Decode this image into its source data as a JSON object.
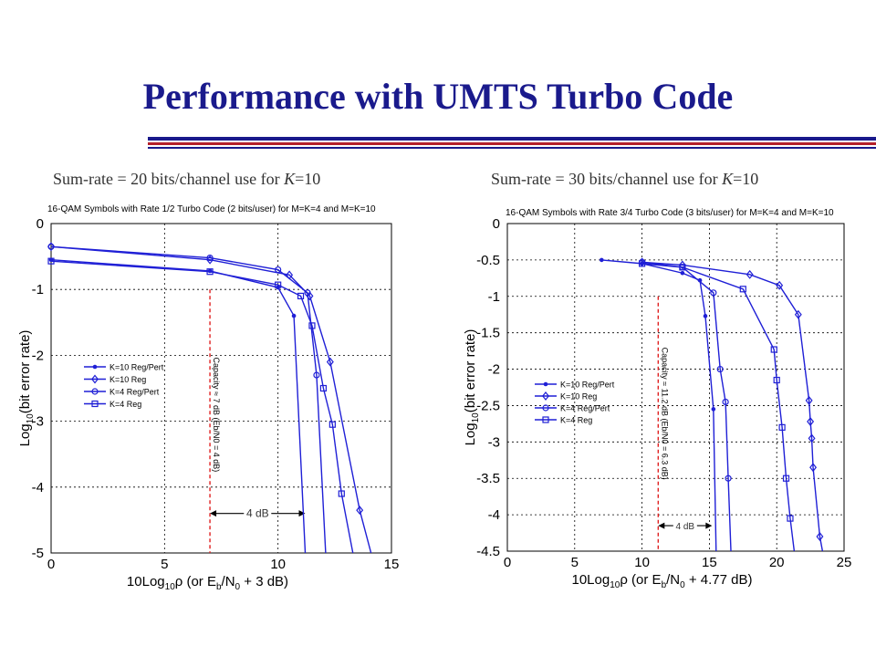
{
  "slide": {
    "title": "Performance with UMTS Turbo Code"
  },
  "subtitles": [
    {
      "text": "Sum-rate = 20 bits/channel use for ",
      "var": "K",
      "tail": "=10"
    },
    {
      "text": "Sum-rate = 30 bits/channel use for ",
      "var": "K",
      "tail": "=10"
    }
  ],
  "colors": {
    "title": "#1a1a8c",
    "series": "#1f1fd6",
    "capacity": "#e02020",
    "rule_red": "#b4202a"
  },
  "chart_data": [
    {
      "type": "line",
      "title": "16-QAM Symbols with Rate 1/2 Turbo Code (2 bits/user) for M=K=4 and M=K=10",
      "xlabel": "10Log10ρ   (or Eb/N0 + 3 dB)",
      "ylabel": "Log10(bit error rate)",
      "xlim": [
        0,
        15
      ],
      "ylim": [
        -5,
        0
      ],
      "xticks": [
        0,
        5,
        10,
        15
      ],
      "yticks": [
        0,
        -1,
        -2,
        -3,
        -4,
        -5
      ],
      "xtick_labels": [
        "0",
        "5",
        "10",
        "15"
      ],
      "ytick_labels": [
        "0",
        "-1",
        "-2",
        "-3",
        "-4",
        "-5"
      ],
      "grid": true,
      "legend": "left-middle",
      "series": [
        {
          "name": "K=10 Reg/Pert",
          "marker": "dot",
          "x": [
            0,
            7,
            10,
            10.7,
            11.2
          ],
          "y": [
            -0.55,
            -0.72,
            -0.97,
            -1.4,
            -5
          ]
        },
        {
          "name": "K=10 Reg",
          "marker": "diamond",
          "x": [
            0,
            7,
            10.5,
            11.4,
            12.3,
            13.6,
            14.1
          ],
          "y": [
            -0.35,
            -0.55,
            -0.78,
            -1.1,
            -2.1,
            -4.35,
            -5
          ]
        },
        {
          "name": "K=4 Reg/Pert",
          "marker": "circle",
          "x": [
            0,
            7,
            10,
            11.3,
            11.7,
            12.1
          ],
          "y": [
            -0.35,
            -0.52,
            -0.7,
            -1.05,
            -2.3,
            -5
          ]
        },
        {
          "name": "K=4 Reg",
          "marker": "square",
          "x": [
            0,
            7,
            10,
            11,
            11.5,
            12,
            12.4,
            12.8,
            13.3
          ],
          "y": [
            -0.57,
            -0.73,
            -0.93,
            -1.1,
            -1.55,
            -2.5,
            -3.05,
            -4.1,
            -5
          ]
        }
      ],
      "annotations": {
        "capacity_x": 7,
        "capacity_label": "Capacity ≈ 7 dB   (Eb/N0 = 4 dB)",
        "gap_from": 7,
        "gap_to": 11.2,
        "gap_y": -4.4,
        "gap_label": "4 dB"
      }
    },
    {
      "type": "line",
      "title": "16-QAM Symbols with Rate 3/4 Turbo Code (3 bits/user) for M=K=4 and M=K=10",
      "xlabel": "10Log10ρ   (or Eb/N0 + 4.77 dB)",
      "ylabel": "Log10(bit error rate)",
      "xlim": [
        0,
        25
      ],
      "ylim": [
        -4.5,
        0
      ],
      "xticks": [
        0,
        5,
        10,
        15,
        20,
        25
      ],
      "yticks": [
        0,
        -0.5,
        -1,
        -1.5,
        -2,
        -2.5,
        -3,
        -3.5,
        -4,
        -4.5
      ],
      "xtick_labels": [
        "0",
        "5",
        "10",
        "15",
        "20",
        "25"
      ],
      "ytick_labels": [
        "0",
        "-0.5",
        "-1",
        "-1.5",
        "-2",
        "-2.5",
        "-3",
        "-3.5",
        "-4",
        "-4.5"
      ],
      "grid": true,
      "legend": "left-middle",
      "series": [
        {
          "name": "K=10 Reg/Pert",
          "marker": "dot",
          "x": [
            7,
            10,
            13,
            14.3,
            14.7,
            15.3,
            15.5
          ],
          "y": [
            -0.5,
            -0.55,
            -0.68,
            -0.78,
            -1.27,
            -2.55,
            -4.5
          ]
        },
        {
          "name": "K=10 Reg",
          "marker": "diamond",
          "x": [
            10,
            13,
            18,
            20.2,
            21.6,
            22.4,
            22.5,
            22.6,
            22.7,
            23.2,
            23.4
          ],
          "y": [
            -0.53,
            -0.57,
            -0.7,
            -0.85,
            -1.25,
            -2.43,
            -2.72,
            -2.95,
            -3.35,
            -4.3,
            -4.5
          ]
        },
        {
          "name": "K=4 Reg/Pert",
          "marker": "circle",
          "x": [
            10,
            13,
            15.3,
            15.8,
            16.2,
            16.4,
            16.6
          ],
          "y": [
            -0.53,
            -0.6,
            -0.95,
            -2.0,
            -2.45,
            -3.5,
            -4.5
          ]
        },
        {
          "name": "K=4 Reg",
          "marker": "square",
          "x": [
            10,
            13,
            17.5,
            19.8,
            20.0,
            20.4,
            20.7,
            21.0,
            21.3
          ],
          "y": [
            -0.55,
            -0.6,
            -0.9,
            -1.73,
            -2.15,
            -2.8,
            -3.5,
            -4.05,
            -4.5
          ]
        }
      ],
      "annotations": {
        "capacity_x": 11.2,
        "capacity_label": "Capacity ≈ 11.2 dB   (Eb/N0 = 6.3 dB)",
        "gap_from": 11.2,
        "gap_to": 15.2,
        "gap_y": -4.15,
        "gap_label": "4 dB"
      }
    }
  ]
}
